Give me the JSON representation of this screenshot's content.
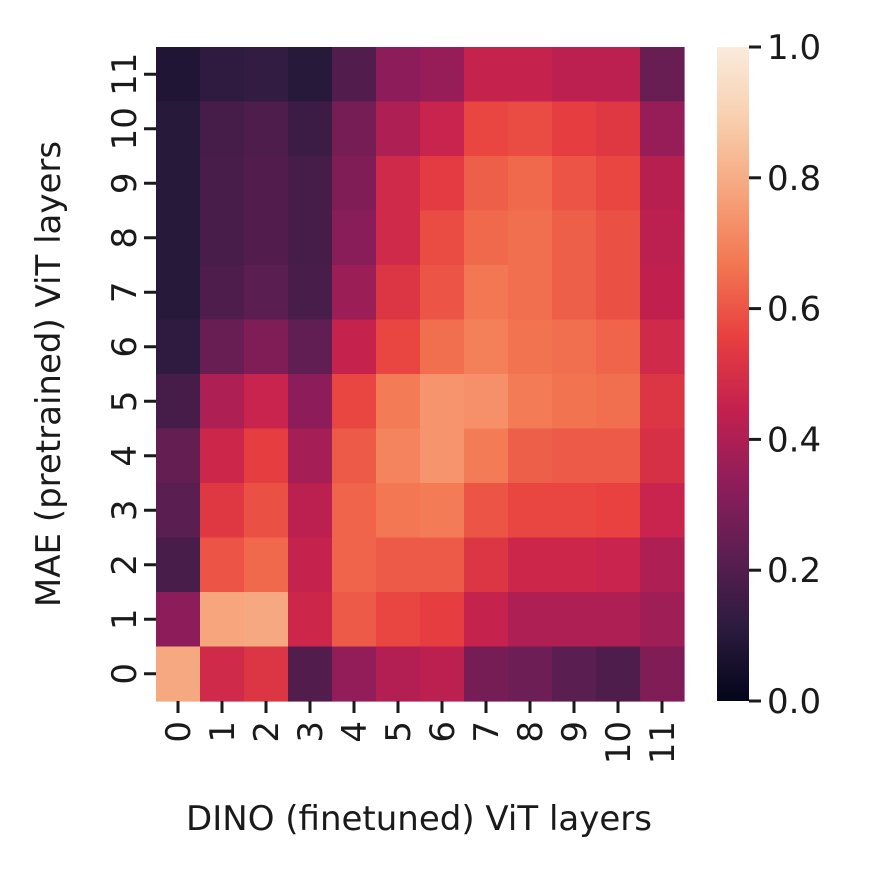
{
  "chart_data": {
    "type": "heatmap",
    "xlabel": "DINO (finetuned) ViT layers",
    "ylabel": "MAE (pretrained) ViT layers",
    "x_categories": [
      "0",
      "1",
      "2",
      "3",
      "4",
      "5",
      "6",
      "7",
      "8",
      "9",
      "10",
      "11"
    ],
    "y_categories": [
      "0",
      "1",
      "2",
      "3",
      "4",
      "5",
      "6",
      "7",
      "8",
      "9",
      "10",
      "11"
    ],
    "y_order": "bottom-to-top",
    "matrix_rows_top_to_bottom": [
      {
        "y": "11",
        "values": [
          0.08,
          0.12,
          0.13,
          0.1,
          0.2,
          0.33,
          0.35,
          0.45,
          0.45,
          0.43,
          0.43,
          0.25
        ]
      },
      {
        "y": "10",
        "values": [
          0.1,
          0.17,
          0.19,
          0.15,
          0.28,
          0.4,
          0.46,
          0.57,
          0.58,
          0.55,
          0.53,
          0.35
        ]
      },
      {
        "y": "9",
        "values": [
          0.1,
          0.18,
          0.2,
          0.17,
          0.3,
          0.48,
          0.54,
          0.62,
          0.64,
          0.6,
          0.57,
          0.42
        ]
      },
      {
        "y": "8",
        "values": [
          0.1,
          0.18,
          0.2,
          0.17,
          0.32,
          0.48,
          0.58,
          0.64,
          0.65,
          0.62,
          0.59,
          0.43
        ]
      },
      {
        "y": "7",
        "values": [
          0.1,
          0.19,
          0.22,
          0.18,
          0.36,
          0.52,
          0.6,
          0.67,
          0.65,
          0.62,
          0.59,
          0.44
        ]
      },
      {
        "y": "6",
        "values": [
          0.12,
          0.25,
          0.3,
          0.23,
          0.45,
          0.57,
          0.65,
          0.69,
          0.66,
          0.65,
          0.63,
          0.48
        ]
      },
      {
        "y": "5",
        "values": [
          0.17,
          0.4,
          0.46,
          0.33,
          0.57,
          0.68,
          0.74,
          0.73,
          0.68,
          0.66,
          0.65,
          0.52
        ]
      },
      {
        "y": "4",
        "values": [
          0.24,
          0.47,
          0.55,
          0.38,
          0.61,
          0.7,
          0.74,
          0.68,
          0.62,
          0.61,
          0.61,
          0.5
        ]
      },
      {
        "y": "3",
        "values": [
          0.22,
          0.53,
          0.59,
          0.43,
          0.63,
          0.67,
          0.68,
          0.6,
          0.57,
          0.57,
          0.56,
          0.46
        ]
      },
      {
        "y": "2",
        "values": [
          0.18,
          0.6,
          0.64,
          0.45,
          0.63,
          0.61,
          0.61,
          0.52,
          0.47,
          0.47,
          0.46,
          0.4
        ]
      },
      {
        "y": "1",
        "values": [
          0.33,
          0.78,
          0.79,
          0.47,
          0.61,
          0.57,
          0.55,
          0.45,
          0.4,
          0.4,
          0.4,
          0.37
        ]
      },
      {
        "y": "0",
        "values": [
          0.79,
          0.48,
          0.52,
          0.2,
          0.34,
          0.41,
          0.43,
          0.28,
          0.26,
          0.22,
          0.19,
          0.3
        ]
      }
    ],
    "colorbar": {
      "range": [
        0.0,
        1.0
      ],
      "ticks": [
        "0.0",
        "0.2",
        "0.4",
        "0.6",
        "0.8",
        "1.0"
      ],
      "tick_values": [
        0.0,
        0.2,
        0.4,
        0.6,
        0.8,
        1.0
      ],
      "colormap": "rocket",
      "colormap_stops": [
        "#03051a",
        "#2b1b3e",
        "#5c1e51",
        "#8f1d5a",
        "#c3204f",
        "#e83f3f",
        "#f37651",
        "#f6a47c",
        "#f8cfad",
        "#faebdd"
      ]
    },
    "grid": false,
    "legend": "colorbar-right"
  }
}
